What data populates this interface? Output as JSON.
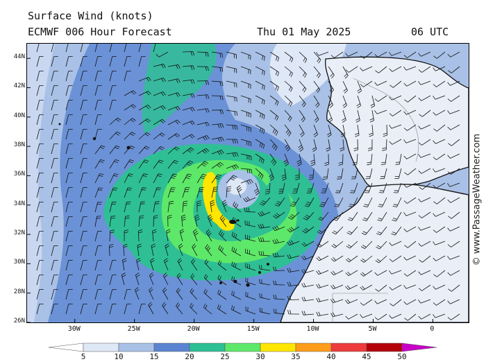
{
  "header": {
    "title": "Surface Wind (knots)",
    "model": "ECMWF 006 Hour Forecast",
    "date": "Thu 01 May 2025",
    "time": "06 UTC"
  },
  "credit": "© www.PassageWeather.com",
  "map": {
    "lat_labels": [
      "44N",
      "42N",
      "40N",
      "38N",
      "36N",
      "34N",
      "32N",
      "30N",
      "28N",
      "26N"
    ],
    "lon_labels": [
      "30W",
      "25W",
      "20W",
      "15W",
      "10W",
      "5W",
      "0"
    ],
    "lat_range": [
      26,
      45
    ],
    "lon_range": [
      -34,
      3
    ],
    "low_center": {
      "lat": 35.0,
      "lon": -15.5
    }
  },
  "legend": {
    "values": [
      "5",
      "10",
      "15",
      "20",
      "25",
      "30",
      "35",
      "40",
      "45",
      "50"
    ],
    "colors": [
      "#ffffff",
      "#dfe8f6",
      "#a9c1e6",
      "#5b85d2",
      "#2fbf95",
      "#5ee86a",
      "#ffe600",
      "#ff9c1a",
      "#ee3b3b",
      "#b5000a",
      "#c800c8"
    ]
  }
}
